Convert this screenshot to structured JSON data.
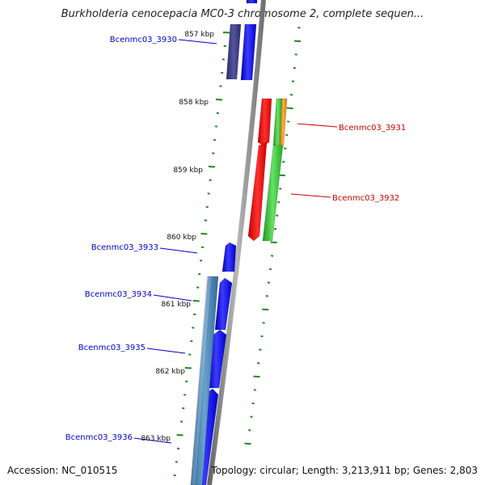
{
  "title": "Burkholderia cenocepacia MC0-3 chromosome 2, complete sequen...",
  "footer": {
    "accession": "Accession: NC_010515",
    "topology": "Topology: circular; Length: 3,213,911 bp; Genes: 2,803"
  },
  "ruler": [
    "857 kbp",
    "858 kbp",
    "859 kbp",
    "860 kbp",
    "861 kbp",
    "862 kbp",
    "863 kbp"
  ],
  "genes": [
    {
      "name": "Bcenmc03_3930",
      "strand": "minus"
    },
    {
      "name": "Bcenmc03_3931",
      "strand": "plus"
    },
    {
      "name": "Bcenmc03_3932",
      "strand": "plus"
    },
    {
      "name": "Bcenmc03_3933",
      "strand": "minus"
    },
    {
      "name": "Bcenmc03_3934",
      "strand": "minus"
    },
    {
      "name": "Bcenmc03_3935",
      "strand": "minus"
    },
    {
      "name": "Bcenmc03_3936",
      "strand": "minus"
    }
  ],
  "colors": {
    "backbone": "#8a8a8a",
    "ticks": "#1e8a1e",
    "minus_gene": "#0000ff",
    "minus_gene_alt": "#3a3a8c",
    "minus_feature": "#4682b4",
    "plus_gene": "#ff0000",
    "plus_feature": "#32cd32",
    "plus_feature_alt": "#ff8c00",
    "label_minus": "#0000cc",
    "label_plus": "#cc0000"
  }
}
